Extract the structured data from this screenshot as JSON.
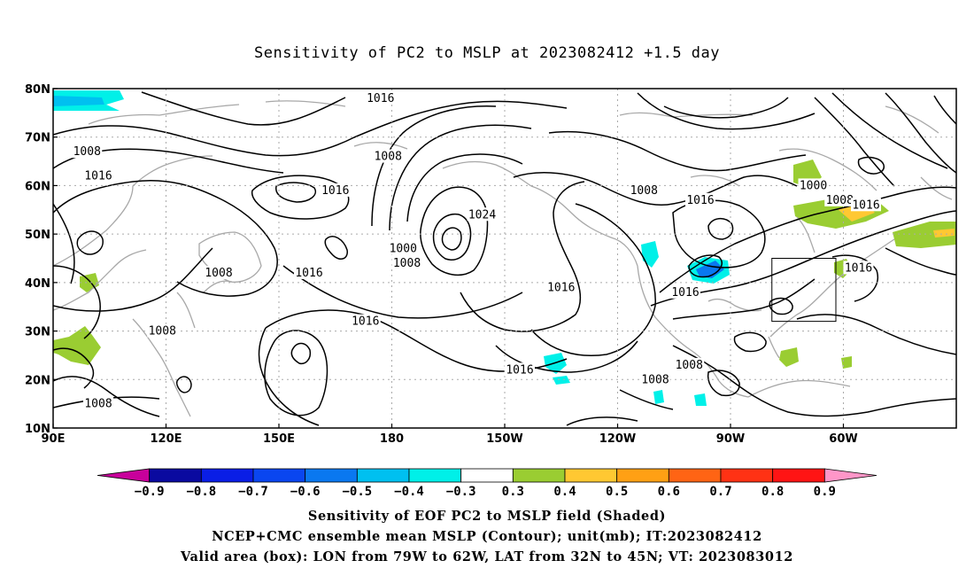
{
  "title": "Sensitivity of PC2 to MSLP at 2023082412 +1.5 day",
  "map": {
    "lon_labels": [
      "90E",
      "120E",
      "150E",
      "180",
      "150W",
      "120W",
      "90W",
      "60W"
    ],
    "lat_labels": [
      "80N",
      "70N",
      "60N",
      "50N",
      "40N",
      "30N",
      "20N",
      "10N"
    ],
    "contour_labels": [
      {
        "text": "1016",
        "lon": 177,
        "lat": 78
      },
      {
        "text": "1008",
        "lon": 99,
        "lat": 67
      },
      {
        "text": "1016",
        "lon": 102,
        "lat": 62
      },
      {
        "text": "1008",
        "lon": 179,
        "lat": 66
      },
      {
        "text": "1016",
        "lon": 165,
        "lat": 59
      },
      {
        "text": "1024",
        "lon": -156,
        "lat": 54
      },
      {
        "text": "1008",
        "lon": -113,
        "lat": 59
      },
      {
        "text": "1016",
        "lon": -98,
        "lat": 57
      },
      {
        "text": "1000",
        "lon": -68,
        "lat": 60
      },
      {
        "text": "1008",
        "lon": -61,
        "lat": 57
      },
      {
        "text": "1016",
        "lon": -54,
        "lat": 56
      },
      {
        "text": "1000",
        "lon": -177,
        "lat": 47
      },
      {
        "text": "1008",
        "lon": -176,
        "lat": 44
      },
      {
        "text": "1008",
        "lon": 134,
        "lat": 42
      },
      {
        "text": "1016",
        "lon": 158,
        "lat": 42
      },
      {
        "text": "1016",
        "lon": -135,
        "lat": 39
      },
      {
        "text": "1016",
        "lon": -102,
        "lat": 38
      },
      {
        "text": "1016",
        "lon": -56,
        "lat": 43
      },
      {
        "text": "1016",
        "lon": 173,
        "lat": 32
      },
      {
        "text": "1008",
        "lon": 119,
        "lat": 30
      },
      {
        "text": "1016",
        "lon": -146,
        "lat": 22
      },
      {
        "text": "1008",
        "lon": -101,
        "lat": 23
      },
      {
        "text": "1008",
        "lon": -110,
        "lat": 20
      },
      {
        "text": "1008",
        "lon": 102,
        "lat": 15
      }
    ],
    "valid_box": {
      "lon_min": -79,
      "lon_max": -62,
      "lat_min": 32,
      "lat_max": 45
    }
  },
  "colorbar": {
    "labels": [
      "−0.9",
      "−0.8",
      "−0.7",
      "−0.6",
      "−0.5",
      "−0.4",
      "−0.3",
      "0.3",
      "0.4",
      "0.5",
      "0.6",
      "0.7",
      "0.8",
      "0.9"
    ],
    "colors": [
      "#c8009b",
      "#0a0aa0",
      "#0a1ee6",
      "#0a46f0",
      "#0a78f0",
      "#00c0f0",
      "#00f0e8",
      "#ffffff",
      "#9acd32",
      "#ffc832",
      "#ffa014",
      "#ff6414",
      "#ff3214",
      "#ff1414",
      "#ff96c8"
    ]
  },
  "captions": {
    "line1": "Sensitivity of EOF PC2 to MSLP field (Shaded)",
    "line2": "NCEP+CMC ensemble mean MSLP (Contour); unit(mb); IT:2023082412",
    "line3": "Valid area (box): LON from 79W to 62W, LAT from 32N to 45N; VT: 2023083012"
  }
}
